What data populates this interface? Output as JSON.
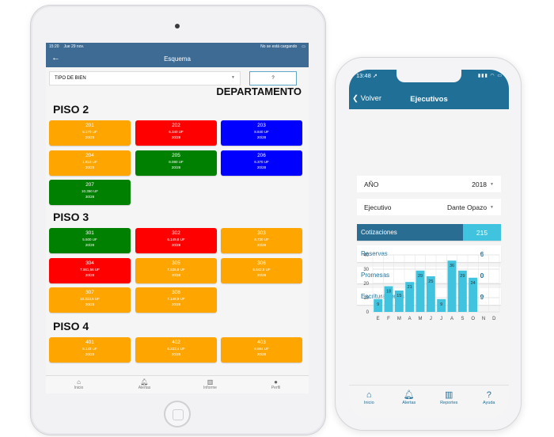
{
  "tablet": {
    "status": {
      "time": "15:20",
      "date": "Jue 29 nov.",
      "right": "No se está cargando"
    },
    "nav": {
      "back_icon": "back-arrow-icon",
      "title": "Esquema"
    },
    "filter": {
      "select_value": "TIPO DE BIEN",
      "help_label": "?"
    },
    "heading": "DEPARTAMENTO",
    "colors": {
      "orange": "#ffa500",
      "red": "#ff0000",
      "blue": "#0000ff",
      "green": "#008000"
    },
    "floors": [
      {
        "label": "PISO 2",
        "units": [
          {
            "num": "201",
            "price": "5.170 UF",
            "ratio": "20/28",
            "status": "orange"
          },
          {
            "num": "202",
            "price": "6.340 UF",
            "ratio": "20/28",
            "status": "red"
          },
          {
            "num": "203",
            "price": "8.840 UF",
            "ratio": "20/28",
            "status": "blue"
          },
          {
            "num": "204",
            "price": "1.610 UF",
            "ratio": "30/28",
            "status": "orange"
          },
          {
            "num": "205",
            "price": "8.080 UF",
            "ratio": "20/28",
            "status": "green"
          },
          {
            "num": "206",
            "price": "6.370 UF",
            "ratio": "20/28",
            "status": "blue"
          },
          {
            "num": "207",
            "price": "10.350 UF",
            "ratio": "30/28",
            "status": "green"
          }
        ]
      },
      {
        "label": "PISO 3",
        "units": [
          {
            "num": "301",
            "price": "5.500 UF",
            "ratio": "20/28",
            "status": "green"
          },
          {
            "num": "302",
            "price": "6.149,8 UF",
            "ratio": "20/28",
            "status": "red"
          },
          {
            "num": "303",
            "price": "8.730 UF",
            "ratio": "20/28",
            "status": "orange"
          },
          {
            "num": "304",
            "price": "7.961,56 UF",
            "ratio": "20/28",
            "status": "red"
          },
          {
            "num": "305",
            "price": "7.535,8 UF",
            "ratio": "20/28",
            "status": "orange"
          },
          {
            "num": "306",
            "price": "5.642,5 UF",
            "ratio": "20/28",
            "status": "orange"
          },
          {
            "num": "307",
            "price": "10.333,5 UF",
            "ratio": "30/28",
            "status": "orange"
          },
          {
            "num": "308",
            "price": "7.148,9 UF",
            "ratio": "20/28",
            "status": "orange"
          }
        ]
      },
      {
        "label": "PISO 4",
        "units": [
          {
            "num": "401",
            "price": "5.143 UF",
            "ratio": "20/28",
            "status": "orange"
          },
          {
            "num": "402",
            "price": "6.223,4 UF",
            "ratio": "20/28",
            "status": "orange"
          },
          {
            "num": "403",
            "price": "8.664 UF",
            "ratio": "20/28",
            "status": "orange"
          }
        ]
      }
    ],
    "tabbar": [
      {
        "label": "Inicio",
        "icon": "home-icon"
      },
      {
        "label": "Alertas",
        "icon": "bell-icon"
      },
      {
        "label": "Informe",
        "icon": "bar-chart-icon"
      },
      {
        "label": "Perfil",
        "icon": "user-icon"
      }
    ]
  },
  "phone": {
    "status": {
      "time": "13:48",
      "arrow": "➚"
    },
    "nav": {
      "back_label": "Volver",
      "back_icon": "chevron-left-icon",
      "title": "Ejecutivos"
    },
    "filters": [
      {
        "label": "AÑO",
        "value": "2018"
      },
      {
        "label": "Ejecutivo",
        "value": "Dante Opazo"
      }
    ],
    "stats": [
      {
        "label": "Cotizaciones",
        "value": "215",
        "active": true
      },
      {
        "label": "Reservas",
        "value": "6"
      },
      {
        "label": "Promesas",
        "value": "0"
      },
      {
        "label": "Escrituraciones",
        "value": "9"
      }
    ],
    "chart_data": {
      "type": "bar",
      "categories": [
        "E",
        "F",
        "M",
        "A",
        "M",
        "J",
        "J",
        "A",
        "S",
        "O",
        "N",
        "D"
      ],
      "values": [
        9,
        18,
        15,
        21,
        29,
        25,
        9,
        36,
        29,
        24,
        null,
        null
      ],
      "ylim": [
        0,
        40
      ],
      "yticks": [
        0,
        10,
        20,
        30,
        40
      ],
      "grid": true,
      "bar_color": "#3fc3de"
    },
    "tabbar": [
      {
        "label": "Inicio",
        "icon": "home-icon"
      },
      {
        "label": "Alertas",
        "icon": "bell-icon"
      },
      {
        "label": "Reportes",
        "icon": "bar-chart-icon"
      },
      {
        "label": "Ayuda",
        "icon": "help-icon"
      }
    ]
  }
}
